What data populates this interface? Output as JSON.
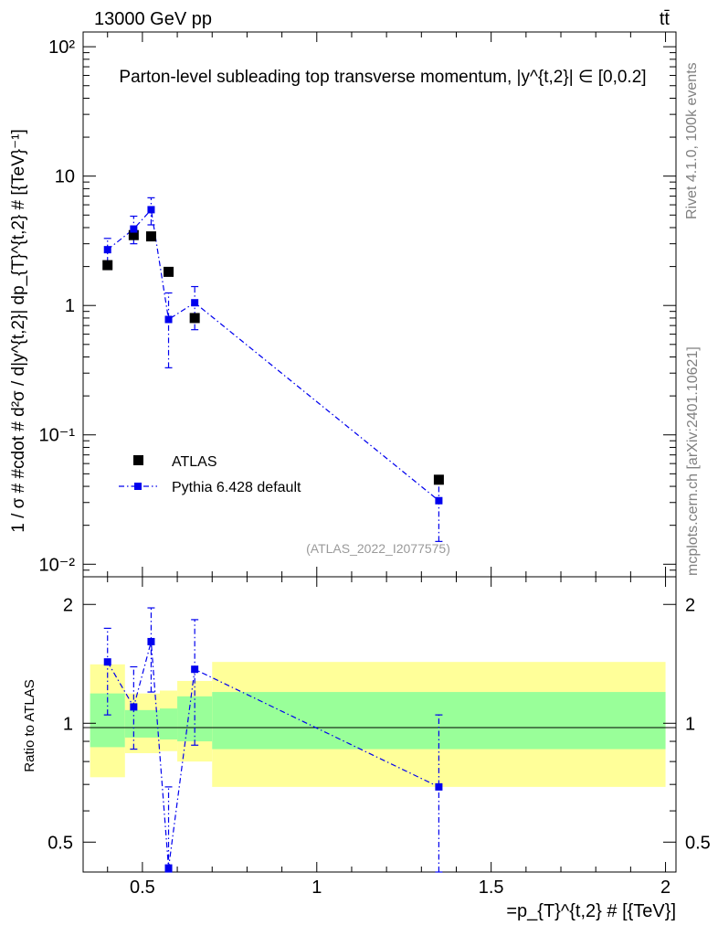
{
  "header": {
    "energy_label": "13000 GeV pp",
    "process_label": "tt̄",
    "title": "Parton-level subleading top transverse momentum, |y^{t,2}| ∈ [0,0.2]"
  },
  "side_labels": {
    "rivet": "Rivet 4.1.0,  100k events",
    "mcplots": "mcplots.cern.ch [arXiv:2401.10621]"
  },
  "watermark": "(ATLAS_2022_I2077575)",
  "chart_data": {
    "type": "scatter",
    "main": {
      "yscale": "log",
      "ylim": [
        0.008,
        130
      ],
      "ylabel": "1 / σ # #cdot # d²σ / d|y^{t,2}| dp_{T}^{t,2} # [{TeV}⁻¹]",
      "yticks": [
        {
          "value": 0.01,
          "label": "10⁻²"
        },
        {
          "value": 0.1,
          "label": "10⁻¹"
        },
        {
          "value": 1,
          "label": "1"
        },
        {
          "value": 10,
          "label": "10"
        },
        {
          "value": 100,
          "label": "10²"
        }
      ]
    },
    "ratio": {
      "yscale": "log",
      "ylim": [
        0.42,
        2.35
      ],
      "ylabel": "Ratio to ATLAS",
      "yticks": [
        {
          "value": 0.5,
          "label": "0.5"
        },
        {
          "value": 1,
          "label": "1"
        },
        {
          "value": 2,
          "label": "2"
        }
      ],
      "bins": [
        {
          "xlo": 0.35,
          "xhi": 0.45,
          "green": [
            0.87,
            1.19
          ],
          "yellow": [
            0.73,
            1.41
          ]
        },
        {
          "xlo": 0.45,
          "xhi": 0.55,
          "green": [
            0.92,
            1.08
          ],
          "yellow": [
            0.84,
            1.19
          ]
        },
        {
          "xlo": 0.55,
          "xhi": 0.6,
          "green": [
            0.91,
            1.09
          ],
          "yellow": [
            0.85,
            1.21
          ]
        },
        {
          "xlo": 0.6,
          "xhi": 0.7,
          "green": [
            0.9,
            1.17
          ],
          "yellow": [
            0.8,
            1.28
          ]
        },
        {
          "xlo": 0.7,
          "xhi": 2.0,
          "green": [
            0.86,
            1.2
          ],
          "yellow": [
            0.69,
            1.43
          ]
        }
      ],
      "pythia": [
        {
          "x": 0.4,
          "y": 1.43,
          "lo": 1.05,
          "hi": 1.74
        },
        {
          "x": 0.475,
          "y": 1.1,
          "lo": 0.86,
          "hi": 1.39
        },
        {
          "x": 0.525,
          "y": 1.61,
          "lo": 1.2,
          "hi": 1.96
        },
        {
          "x": 0.575,
          "y": 0.43,
          "lo": 0.42,
          "hi": 0.69
        },
        {
          "x": 0.65,
          "y": 1.37,
          "lo": 0.88,
          "hi": 1.83
        },
        {
          "x": 1.35,
          "y": 0.69,
          "lo": 0.42,
          "hi": 1.05
        }
      ]
    },
    "x": {
      "lim": [
        0.33,
        2.03
      ],
      "label": "=p_{T}^{t,2} # [{TeV}]",
      "ticks": [
        {
          "value": 0.5,
          "label": "0.5"
        },
        {
          "value": 1,
          "label": "1"
        },
        {
          "value": 1.5,
          "label": "1.5"
        },
        {
          "value": 2,
          "label": "2"
        }
      ]
    },
    "series": [
      {
        "name": "ATLAS",
        "color": "#000000",
        "points": [
          {
            "x": 0.4,
            "y": 2.05
          },
          {
            "x": 0.475,
            "y": 3.5
          },
          {
            "x": 0.525,
            "y": 3.42
          },
          {
            "x": 0.575,
            "y": 1.82
          },
          {
            "x": 0.65,
            "y": 0.8
          },
          {
            "x": 1.35,
            "y": 0.045
          }
        ]
      },
      {
        "name": "Pythia 6.428 default",
        "color": "#0000ee",
        "points": [
          {
            "x": 0.4,
            "y": 2.7,
            "lo": 2.15,
            "hi": 3.3
          },
          {
            "x": 0.475,
            "y": 3.9,
            "lo": 3.0,
            "hi": 4.9
          },
          {
            "x": 0.525,
            "y": 5.5,
            "lo": 4.2,
            "hi": 6.8
          },
          {
            "x": 0.575,
            "y": 0.78,
            "lo": 0.33,
            "hi": 1.25
          },
          {
            "x": 0.65,
            "y": 1.05,
            "lo": 0.65,
            "hi": 1.4
          },
          {
            "x": 1.35,
            "y": 0.031,
            "lo": 0.015,
            "hi": 0.045
          }
        ]
      }
    ]
  },
  "colors": {
    "band_inner": "#99ff99",
    "band_outer": "#ffff99"
  }
}
